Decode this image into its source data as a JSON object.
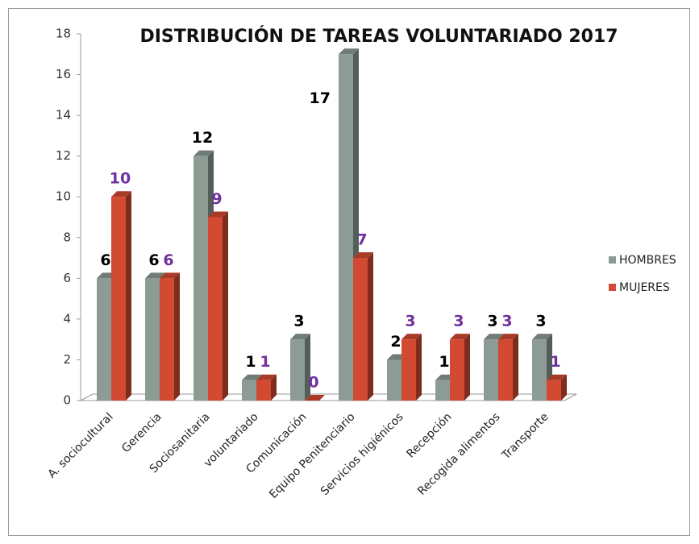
{
  "chart_data": {
    "type": "bar",
    "title": "DISTRIBUCIÓN DE TAREAS VOLUNTARIADO 2017",
    "categories": [
      "A. sociocultural",
      "Gerencia",
      "Sociosanitaria",
      "voluntariado",
      "Comunicación",
      "Equipo Penitenciario",
      "Servicios higiénicos",
      "Recepción",
      "Recogida alimentos",
      "Transporte"
    ],
    "series": [
      {
        "name": "HOMBRES",
        "color": "#8c9c94",
        "label_color": "#000000",
        "values": [
          6,
          6,
          12,
          1,
          3,
          17,
          2,
          1,
          3,
          3
        ]
      },
      {
        "name": "MUJERES",
        "color": "#d24a32",
        "label_color": "#7030a0",
        "values": [
          10,
          6,
          9,
          1,
          0,
          7,
          3,
          3,
          3,
          1
        ]
      }
    ],
    "ylim": [
      0,
      18
    ],
    "yticks": [
      0,
      2,
      4,
      6,
      8,
      10,
      12,
      14,
      16,
      18
    ],
    "legend": "right"
  }
}
